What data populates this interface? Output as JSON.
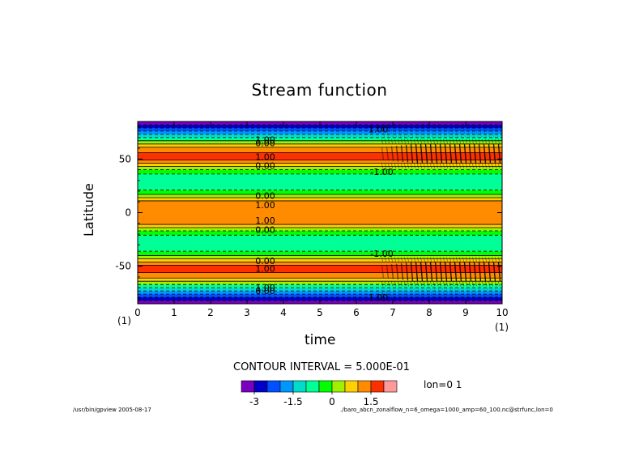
{
  "chart_data": {
    "type": "heatmap",
    "title": "Stream function",
    "xlabel": "time",
    "ylabel": "Latitude",
    "xlim": [
      0,
      10
    ],
    "ylim": [
      -85,
      85
    ],
    "x_ticks": [
      "0",
      "1",
      "2",
      "3",
      "4",
      "5",
      "6",
      "7",
      "8",
      "9",
      "10"
    ],
    "y_ticks": [
      {
        "value": 50,
        "label": "50"
      },
      {
        "value": 0,
        "label": "0"
      },
      {
        "value": -50,
        "label": "-50"
      }
    ],
    "x_axis_scale_left": "(1)",
    "x_axis_scale_right": "(1)",
    "contour_interval_label": "CONTOUR INTERVAL = 5.000E-01",
    "contour_interval": 0.5,
    "lon_label": "lon=0 1",
    "colorbar": {
      "levels": [
        -3.5,
        -3,
        -2.5,
        -2,
        -1.5,
        -1,
        -0.5,
        0,
        0.5,
        1,
        1.5,
        2
      ],
      "colors": [
        "#7a00bf",
        "#0000c8",
        "#0050ff",
        "#0096ff",
        "#00dcc8",
        "#00ff96",
        "#00ff00",
        "#a0f000",
        "#ffd000",
        "#ff8c00",
        "#ff3000",
        "#ff9a9a"
      ],
      "tick_labels": [
        "-3",
        "-1.5",
        "0",
        "1.5"
      ],
      "tick_values": [
        -3,
        -1.5,
        0,
        1.5
      ]
    },
    "bands": [
      {
        "lat_from": -85,
        "lat_to": -82,
        "value": -3.25
      },
      {
        "lat_from": -82,
        "lat_to": -79,
        "value": -2.75
      },
      {
        "lat_from": -79,
        "lat_to": -76,
        "value": -2.25
      },
      {
        "lat_from": -76,
        "lat_to": -73,
        "value": -1.75
      },
      {
        "lat_from": -73,
        "lat_to": -70,
        "value": -1.25
      },
      {
        "lat_from": -70,
        "lat_to": -67,
        "value": -0.75
      },
      {
        "lat_from": -67,
        "lat_to": -64,
        "value": 0.25
      },
      {
        "lat_from": -64,
        "lat_to": -61,
        "value": 0.75
      },
      {
        "lat_from": -61,
        "lat_to": -56,
        "value": 1.25
      },
      {
        "lat_from": -56,
        "lat_to": -49,
        "value": 1.75
      },
      {
        "lat_from": -49,
        "lat_to": -46,
        "value": 1.25
      },
      {
        "lat_from": -46,
        "lat_to": -43,
        "value": 0.75
      },
      {
        "lat_from": -43,
        "lat_to": -40,
        "value": 0.25
      },
      {
        "lat_from": -40,
        "lat_to": -36,
        "value": -0.25
      },
      {
        "lat_from": -36,
        "lat_to": -21,
        "value": -0.75
      },
      {
        "lat_from": -21,
        "lat_to": -17,
        "value": -0.25
      },
      {
        "lat_from": -17,
        "lat_to": -14,
        "value": 0.25
      },
      {
        "lat_from": -14,
        "lat_to": -11,
        "value": 0.75
      },
      {
        "lat_from": -11,
        "lat_to": 11,
        "value": 1.25
      },
      {
        "lat_from": 11,
        "lat_to": 14,
        "value": 0.75
      },
      {
        "lat_from": 14,
        "lat_to": 17,
        "value": 0.25
      },
      {
        "lat_from": 17,
        "lat_to": 21,
        "value": -0.25
      },
      {
        "lat_from": 21,
        "lat_to": 36,
        "value": -0.75
      },
      {
        "lat_from": 36,
        "lat_to": 40,
        "value": -0.25
      },
      {
        "lat_from": 40,
        "lat_to": 43,
        "value": 0.25
      },
      {
        "lat_from": 43,
        "lat_to": 46,
        "value": 0.75
      },
      {
        "lat_from": 46,
        "lat_to": 49,
        "value": 1.25
      },
      {
        "lat_from": 49,
        "lat_to": 56,
        "value": 1.75
      },
      {
        "lat_from": 56,
        "lat_to": 61,
        "value": 1.25
      },
      {
        "lat_from": 61,
        "lat_to": 64,
        "value": 0.75
      },
      {
        "lat_from": 64,
        "lat_to": 67,
        "value": 0.25
      },
      {
        "lat_from": 67,
        "lat_to": 70,
        "value": -0.75
      },
      {
        "lat_from": 70,
        "lat_to": 73,
        "value": -1.25
      },
      {
        "lat_from": 73,
        "lat_to": 76,
        "value": -1.75
      },
      {
        "lat_from": 76,
        "lat_to": 79,
        "value": -2.25
      },
      {
        "lat_from": 79,
        "lat_to": 82,
        "value": -2.75
      },
      {
        "lat_from": 82,
        "lat_to": 85,
        "value": -3.25
      }
    ],
    "contour_labels": [
      {
        "text": "1.00",
        "time": 6.6,
        "lat": 78
      },
      {
        "text": "1.00",
        "time": 3.5,
        "lat": 68
      },
      {
        "text": "0.00",
        "time": 3.5,
        "lat": 65
      },
      {
        "text": "1.00",
        "time": 3.5,
        "lat": 52
      },
      {
        "text": "0.00",
        "time": 3.5,
        "lat": 44
      },
      {
        "text": "-1.00",
        "time": 6.7,
        "lat": 38
      },
      {
        "text": "0.00",
        "time": 3.5,
        "lat": 16
      },
      {
        "text": "1.00",
        "time": 3.5,
        "lat": 7
      },
      {
        "text": "1.00",
        "time": 3.5,
        "lat": -7
      },
      {
        "text": "0.00",
        "time": 3.5,
        "lat": -16
      },
      {
        "text": "-1.00",
        "time": 6.7,
        "lat": -38
      },
      {
        "text": "0.00",
        "time": 3.5,
        "lat": -45
      },
      {
        "text": "1.00",
        "time": 3.5,
        "lat": -52
      },
      {
        "text": "1.00",
        "time": 3.5,
        "lat": -70
      },
      {
        "text": "0.00",
        "time": 3.5,
        "lat": -73
      },
      {
        "text": "1.00",
        "time": 6.6,
        "lat": -79
      }
    ],
    "turbulence_onset_time": 6.7
  },
  "footer": {
    "left": "/usr/bin/gpview  2005-08-17",
    "right": "./baro_abcn_zonalflow_n=6_omega=1000_amp=60_100.nc@strfunc,lon=0"
  }
}
